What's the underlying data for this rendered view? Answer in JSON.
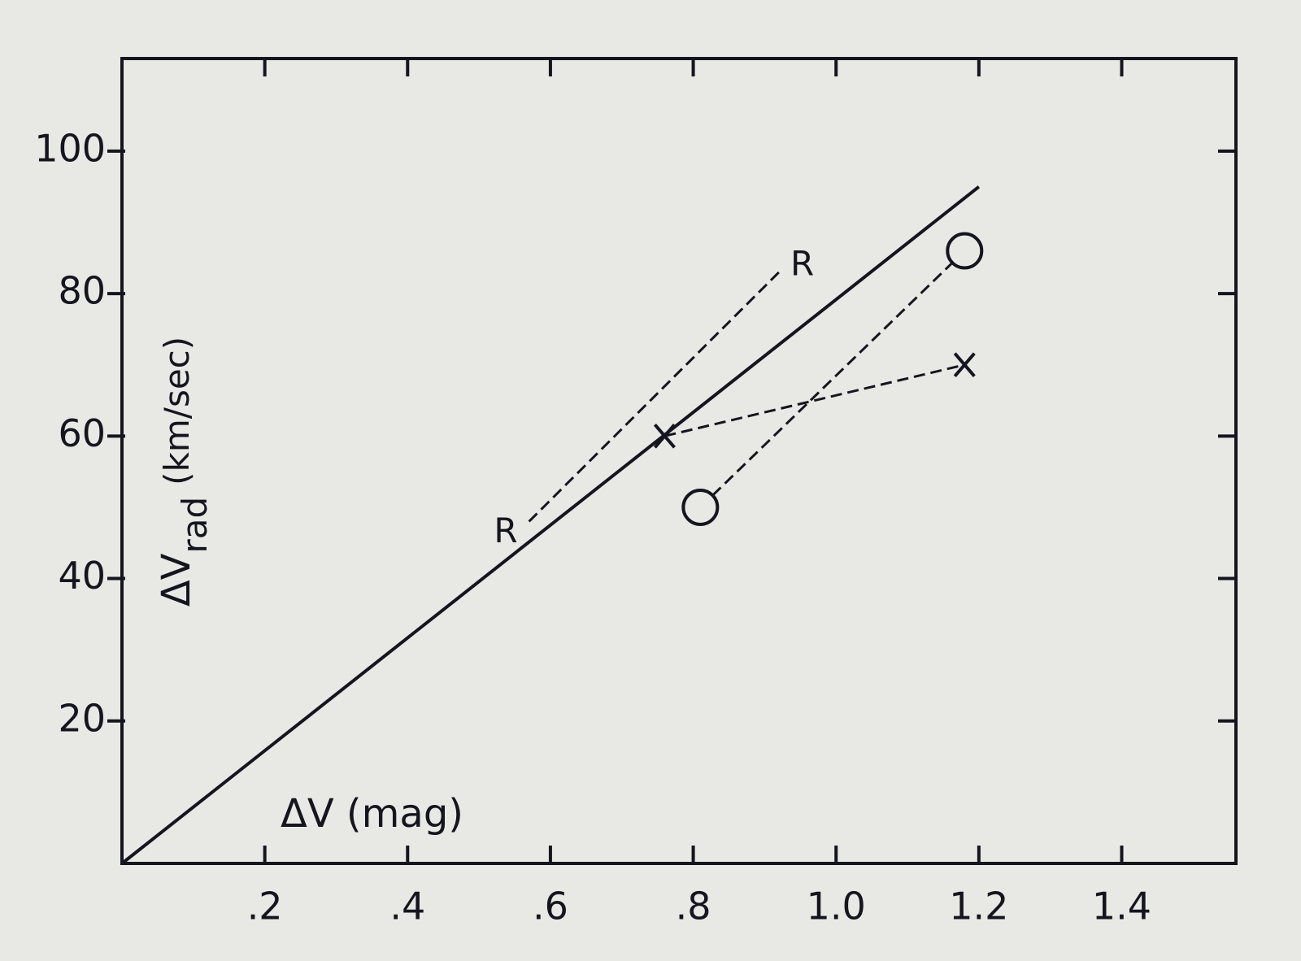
{
  "chart_data": {
    "type": "line",
    "y_label": {
      "main": "ΔV",
      "subscript": "rad",
      "unit": "(km/sec)"
    },
    "x_label": "ΔV (mag)",
    "xlim": [
      0,
      1.56
    ],
    "ylim": [
      0,
      113
    ],
    "xticks": [
      {
        "value": 0.2,
        "label": ".2"
      },
      {
        "value": 0.4,
        "label": ".4"
      },
      {
        "value": 0.6,
        "label": ".6"
      },
      {
        "value": 0.8,
        "label": ".8"
      },
      {
        "value": 1.0,
        "label": "1.0"
      },
      {
        "value": 1.2,
        "label": "1.2"
      },
      {
        "value": 1.4,
        "label": "1.4"
      }
    ],
    "yticks": [
      20,
      40,
      60,
      80,
      100
    ],
    "grid": false,
    "series": [
      {
        "style": "solid",
        "color": "#15151f",
        "x": [
          0,
          1.2
        ],
        "values": [
          0,
          95
        ]
      },
      {
        "style": "dashed",
        "color": "#15151f",
        "marker_label": "R",
        "x": [
          0.57,
          0.92
        ],
        "values": [
          48,
          83
        ]
      },
      {
        "style": "dashed",
        "color": "#15151f",
        "marker": "x",
        "x": [
          0.76,
          1.18
        ],
        "values": [
          60,
          70
        ]
      },
      {
        "style": "dashed",
        "color": "#15151f",
        "marker": "circle",
        "x": [
          0.81,
          1.18
        ],
        "values": [
          50,
          86
        ]
      }
    ]
  }
}
